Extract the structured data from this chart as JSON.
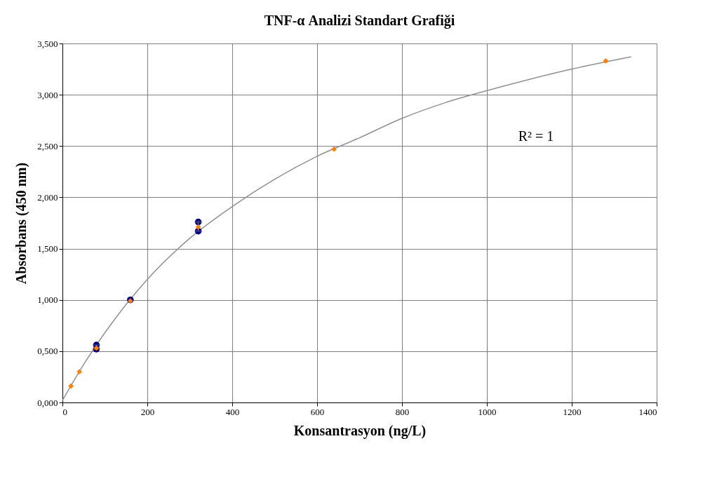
{
  "chart_data": {
    "type": "scatter",
    "title": "TNF-α Analizi Standart Grafiği",
    "xlabel": "Konsantrasyon (ng/L)",
    "ylabel": "Absorbans (450 nm)",
    "xlim": [
      0,
      1400
    ],
    "xticks": [
      0,
      200,
      400,
      600,
      800,
      1000,
      1200,
      1400
    ],
    "ylim": [
      0,
      3.5
    ],
    "yticks": [
      {
        "value": 0,
        "label": "0,000"
      },
      {
        "value": 0.5,
        "label": "0,500"
      },
      {
        "value": 1,
        "label": "1,000"
      },
      {
        "value": 1.5,
        "label": "1,500"
      },
      {
        "value": 2,
        "label": "2,000"
      },
      {
        "value": 2.5,
        "label": "2,500"
      },
      {
        "value": 3,
        "label": "3,000"
      },
      {
        "value": 3.5,
        "label": "3,500"
      }
    ],
    "grid": true,
    "legend": false,
    "series": [
      {
        "type": "line",
        "color": "#909090",
        "marker": "none",
        "line_style": "solid",
        "x": [
          0,
          50,
          100,
          200,
          300,
          400,
          600,
          700,
          800,
          900,
          1000,
          1100,
          1200,
          1340
        ],
        "values": [
          0.02,
          0.37,
          0.68,
          1.2,
          1.6,
          1.91,
          2.4,
          2.58,
          2.77,
          2.92,
          3.04,
          3.15,
          3.25,
          3.37
        ]
      },
      {
        "type": "scatter",
        "color": "#00008b",
        "marker": "circle",
        "x": [
          80,
          80,
          160,
          320,
          320
        ],
        "values": [
          0.56,
          0.52,
          1.0,
          1.76,
          1.67
        ]
      },
      {
        "color": "#ff8000",
        "marker": "diamond",
        "x": [
          20,
          40,
          80,
          160,
          320,
          640,
          1280
        ],
        "values": [
          0.16,
          0.3,
          0.53,
          0.99,
          1.71,
          2.47,
          3.33
        ],
        "errors": [
          null,
          null,
          [
            0.52,
            0.56
          ],
          null,
          [
            1.67,
            1.76
          ],
          null,
          null
        ]
      }
    ],
    "annotations": [
      "R² = 1"
    ]
  }
}
